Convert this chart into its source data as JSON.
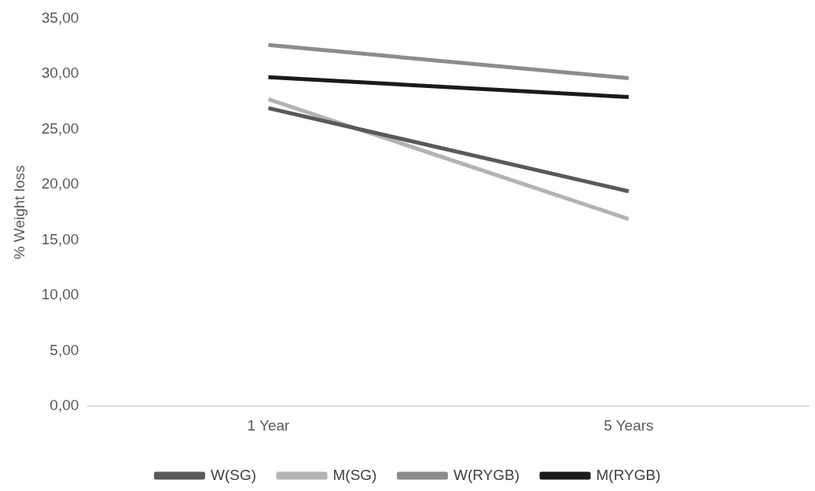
{
  "chart_data": {
    "type": "line",
    "ylabel": "% Weight loss",
    "categories": [
      "1 Year",
      "5 Years"
    ],
    "series": [
      {
        "name": "W(SG)",
        "color": "#595959",
        "values": [
          26.9,
          19.4
        ]
      },
      {
        "name": "M(SG)",
        "color": "#b3b3b3",
        "values": [
          27.7,
          16.9
        ]
      },
      {
        "name": "W(RYGB)",
        "color": "#8c8c8c",
        "values": [
          32.6,
          29.6
        ]
      },
      {
        "name": "M(RYGB)",
        "color": "#1a1a1a",
        "values": [
          29.7,
          27.9
        ]
      }
    ],
    "ylim": [
      0,
      35
    ],
    "yticks": [
      {
        "value": 0,
        "label": "0,00"
      },
      {
        "value": 5,
        "label": "5,00"
      },
      {
        "value": 10,
        "label": "10,00"
      },
      {
        "value": 15,
        "label": "15,00"
      },
      {
        "value": 20,
        "label": "20,00"
      },
      {
        "value": 25,
        "label": "25,00"
      },
      {
        "value": 30,
        "label": "30,00"
      },
      {
        "value": 35,
        "label": "35,00"
      }
    ],
    "legend": "bottom",
    "marker": "none",
    "line_style": "solid"
  }
}
